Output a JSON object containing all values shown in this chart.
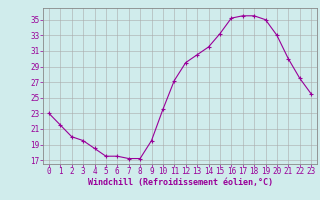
{
  "x": [
    0,
    1,
    2,
    3,
    4,
    5,
    6,
    7,
    8,
    9,
    10,
    11,
    12,
    13,
    14,
    15,
    16,
    17,
    18,
    19,
    20,
    21,
    22,
    23
  ],
  "y": [
    23,
    21.5,
    20,
    19.5,
    18.5,
    17.5,
    17.5,
    17.2,
    17.2,
    19.5,
    23.5,
    27.2,
    29.5,
    30.5,
    31.5,
    33.2,
    35.2,
    35.5,
    35.5,
    35.0,
    33.0,
    30.0,
    27.5,
    25.5
  ],
  "line_color": "#990099",
  "marker": "+",
  "marker_size": 3,
  "background_color": "#d0ecec",
  "grid_color": "#aaaaaa",
  "xlabel": "Windchill (Refroidissement éolien,°C)",
  "xlabel_fontsize": 6,
  "ylabel_ticks": [
    17,
    19,
    21,
    23,
    25,
    27,
    29,
    31,
    33,
    35
  ],
  "xlim": [
    -0.5,
    23.5
  ],
  "ylim": [
    16.5,
    36.5
  ],
  "tick_fontsize": 5.5,
  "xtick_labels": [
    "0",
    "1",
    "2",
    "3",
    "4",
    "5",
    "6",
    "7",
    "8",
    "9",
    "10",
    "11",
    "12",
    "13",
    "14",
    "15",
    "16",
    "17",
    "18",
    "19",
    "20",
    "21",
    "22",
    "23"
  ]
}
